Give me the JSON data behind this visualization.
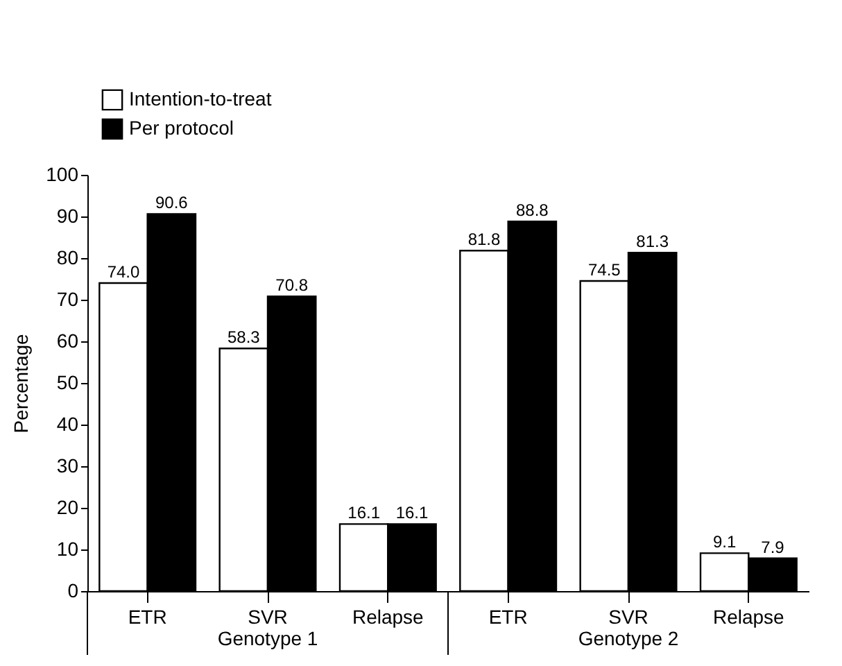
{
  "chart_data": {
    "type": "bar",
    "ylabel": "Percentage",
    "categories": [
      "ETR",
      "SVR",
      "Relapse",
      "ETR",
      "SVR",
      "Relapse"
    ],
    "series": [
      {
        "name": "Intention-to-treat",
        "color": "#ffffff",
        "values": [
          74.0,
          58.3,
          16.1,
          81.8,
          74.5,
          9.1
        ],
        "value_labels": [
          "74.0",
          "58.3",
          "16.1",
          "81.8",
          "74.5",
          "9.1"
        ]
      },
      {
        "name": "Per protocol",
        "color": "#000000",
        "values": [
          90.6,
          70.8,
          16.1,
          88.8,
          81.3,
          7.9
        ],
        "value_labels": [
          "90.6",
          "70.8",
          "16.1",
          "88.8",
          "81.3",
          "7.9"
        ]
      }
    ],
    "ylim": [
      0,
      100
    ],
    "yticks": [
      0,
      10,
      20,
      30,
      40,
      50,
      60,
      70,
      80,
      90,
      100
    ],
    "grid": false,
    "legend": "top left",
    "annotations": [
      "Genotype 1",
      "Genotype 2"
    ]
  }
}
